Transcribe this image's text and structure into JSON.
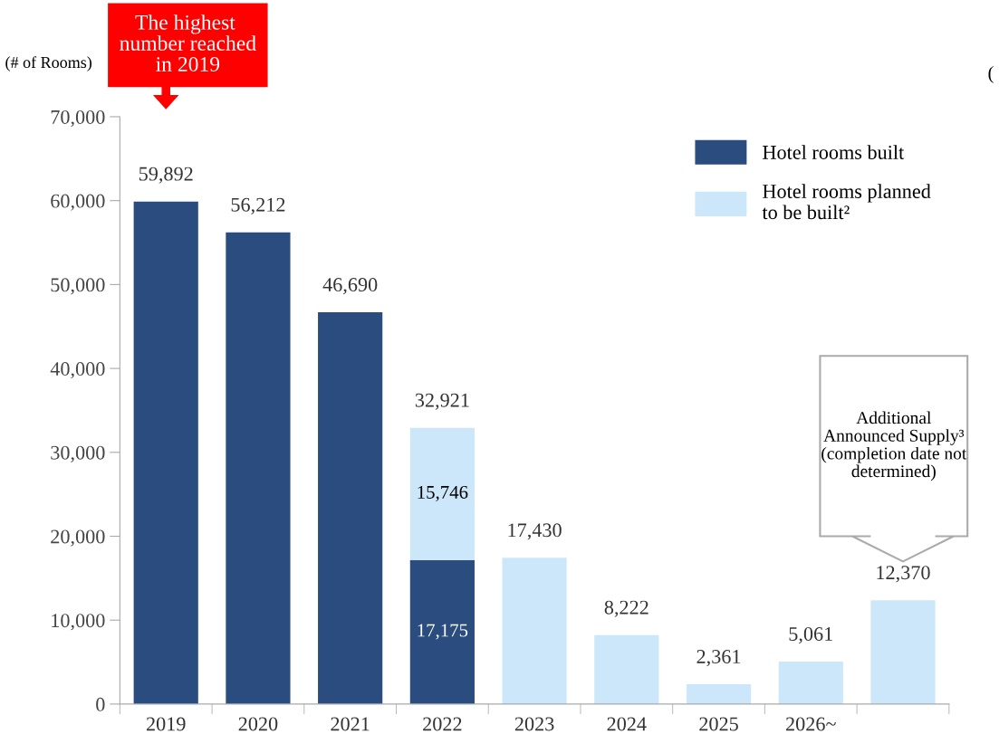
{
  "chart_data": {
    "type": "bar",
    "stacked": true,
    "ylabel": "(# of Rooms)",
    "categories": [
      "2019",
      "2020",
      "2021",
      "2022",
      "2023",
      "2024",
      "2025",
      "2026~",
      null
    ],
    "series": [
      {
        "name": "Hotel rooms built",
        "color": "#2b4c7e",
        "values": [
          59892,
          56212,
          46690,
          17175,
          null,
          null,
          null,
          null,
          null
        ],
        "value_labels": [
          "59,892",
          "56,212",
          "46,690",
          "17,175",
          null,
          null,
          null,
          null,
          null
        ]
      },
      {
        "name": "Hotel rooms planned to be built²",
        "color": "#cce7fa",
        "values": [
          null,
          null,
          null,
          15746,
          17430,
          8222,
          2361,
          5061,
          12370
        ],
        "value_labels": [
          null,
          null,
          null,
          "15,746",
          "17,430",
          "8,222",
          "2,361",
          "5,061",
          "12,370"
        ]
      }
    ],
    "totals": [
      null,
      null,
      null,
      "32,921",
      null,
      null,
      null,
      null,
      null
    ],
    "ylim": [
      0,
      70000
    ],
    "yticks": [
      {
        "value": 0,
        "label": "0"
      },
      {
        "value": 10000,
        "label": "10,000"
      },
      {
        "value": 20000,
        "label": "20,000"
      },
      {
        "value": 30000,
        "label": "30,000"
      },
      {
        "value": 40000,
        "label": "40,000"
      },
      {
        "value": 50000,
        "label": "50,000"
      },
      {
        "value": 60000,
        "label": "60,000"
      },
      {
        "value": 70000,
        "label": "70,000"
      }
    ],
    "grid": false,
    "legend": "top right",
    "annotations": [
      "The highest number reached in 2019",
      "Additional Announced Supply³ (completion date not determined)",
      "("
    ]
  }
}
